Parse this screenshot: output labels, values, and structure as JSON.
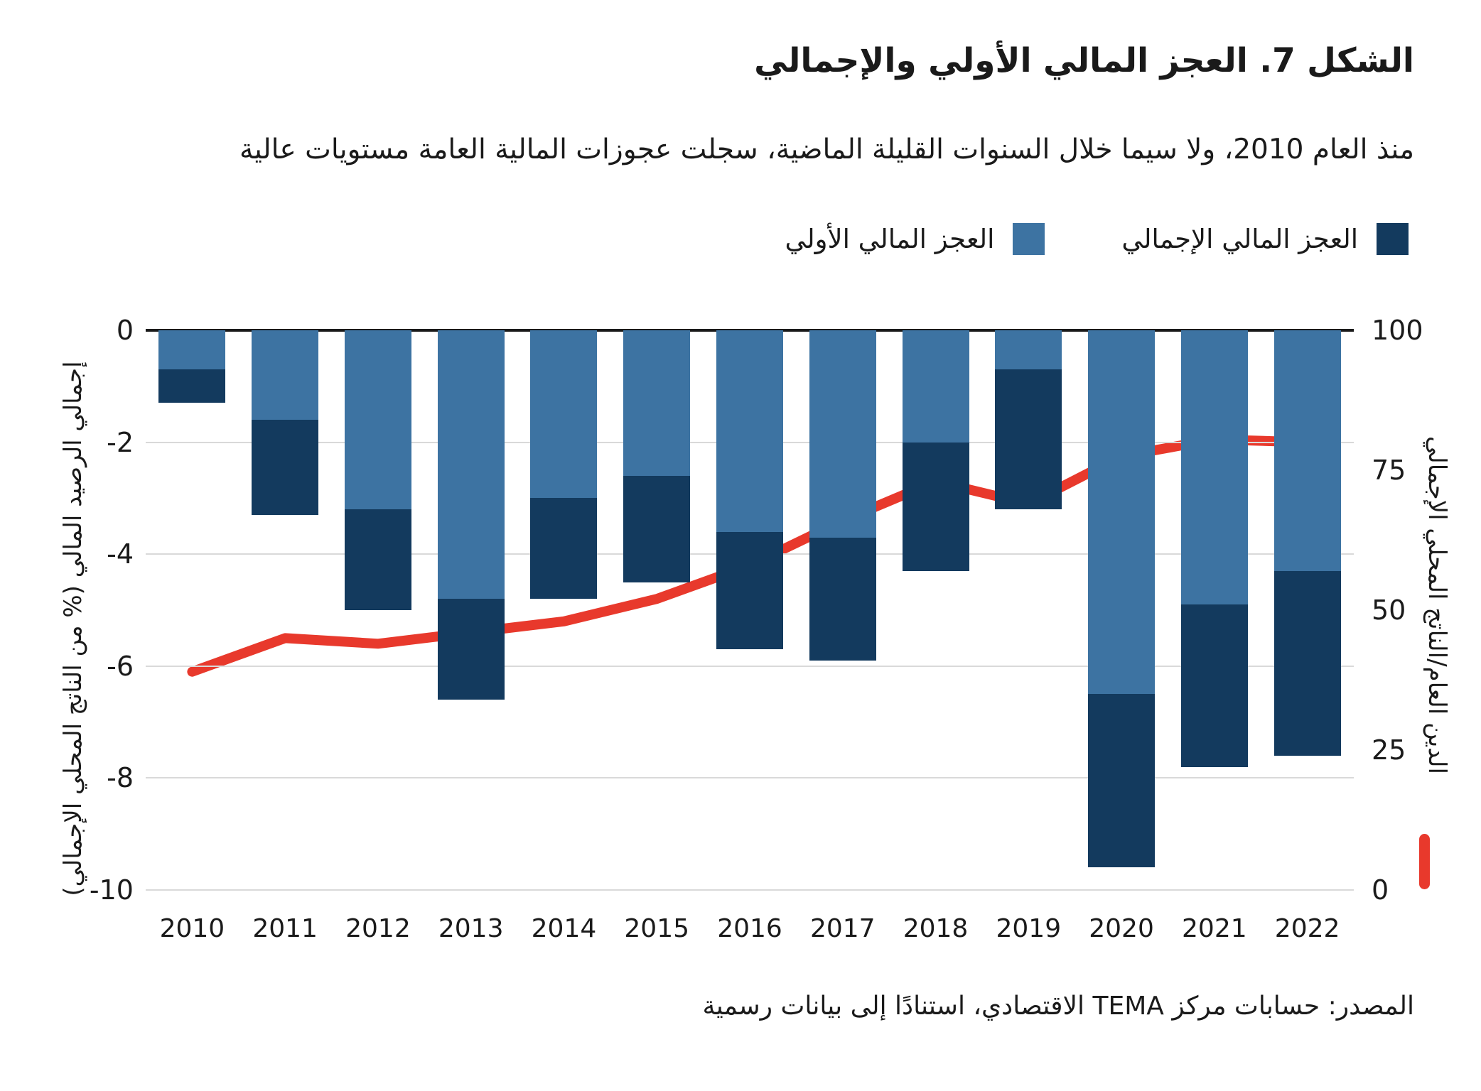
{
  "title": "الشكل 7. العجز المالي الأولي والإجمالي",
  "subtitle": "منذ العام 2010، ولا سيما خلال السنوات القليلة الماضية، سجلت عجوزات المالية العامة مستويات عالية",
  "source": "المصدر: حسابات مركز TEMA الاقتصادي، استنادًا إلى بيانات رسمية",
  "legend": {
    "items": [
      {
        "label": "العجز المالي الإجمالي",
        "color": "#133A5E"
      },
      {
        "label": "العجز المالي الأولي",
        "color": "#3D73A2"
      }
    ]
  },
  "colors": {
    "primary_bar": "#3D73A2",
    "overall_bar": "#133A5E",
    "debt_line": "#E8392C",
    "grid": "#D9D9D9",
    "axis_line": "#1A1A1A",
    "text": "#1A1A1A"
  },
  "chart_data": {
    "type": "bar",
    "subtype": "stacked-bars-with-line",
    "categories": [
      "2010",
      "2011",
      "2012",
      "2013",
      "2014",
      "2015",
      "2016",
      "2017",
      "2018",
      "2019",
      "2020",
      "2021",
      "2022"
    ],
    "series": [
      {
        "name": "العجز المالي الأولي",
        "type": "bar",
        "axis": "left",
        "color": "#3D73A2",
        "values": [
          -0.7,
          -1.6,
          -3.2,
          -4.8,
          -3.0,
          -2.6,
          -3.6,
          -3.7,
          -2.0,
          -0.7,
          -6.5,
          -4.9,
          -4.3
        ]
      },
      {
        "name": "العجز المالي الإجمالي",
        "type": "bar",
        "axis": "left",
        "color": "#133A5E",
        "values": [
          -1.3,
          -3.3,
          -5.0,
          -6.6,
          -4.8,
          -4.5,
          -5.7,
          -5.9,
          -4.3,
          -3.2,
          -9.6,
          -7.8,
          -7.6
        ]
      },
      {
        "name": "الدين العام/الناتج المحلي الإجمالي",
        "type": "line",
        "axis": "right",
        "color": "#E8392C",
        "values": [
          39,
          45,
          44,
          46,
          48,
          52,
          58,
          66,
          73,
          69,
          77.5,
          80.5,
          80
        ]
      }
    ],
    "left_axis": {
      "label": "إجمالي الرصيد المالي (% من الناتج المحلي الإجمالي)",
      "ticks": [
        0,
        -2,
        -4,
        -6,
        -8,
        -10
      ],
      "range": [
        0,
        -10
      ]
    },
    "right_axis": {
      "label": "الدين العام/الناتج المحلي الإجمالي",
      "ticks": [
        100,
        75,
        50,
        25,
        0
      ],
      "range": [
        0,
        100
      ]
    },
    "grid": "horizontal",
    "legend_position": "top-right"
  }
}
